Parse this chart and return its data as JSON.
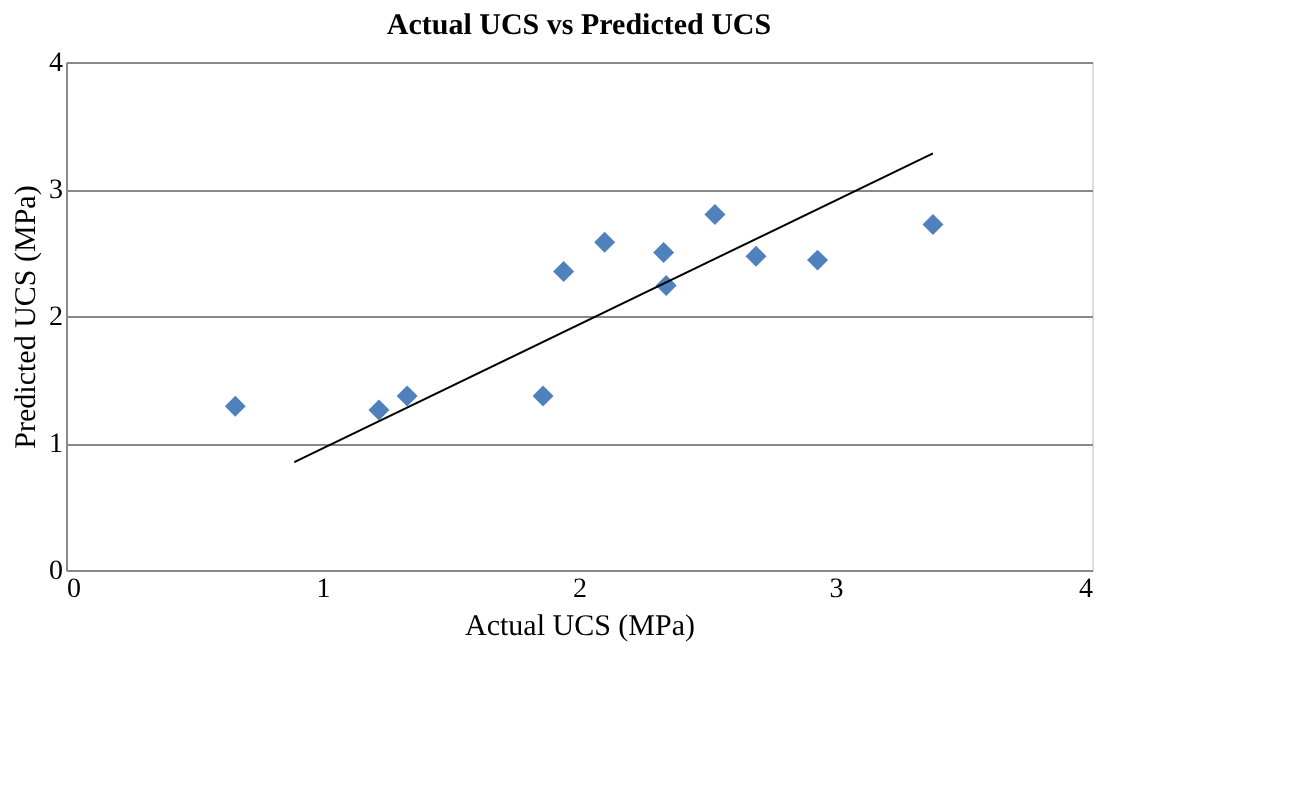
{
  "chart_data": {
    "type": "scatter",
    "title": "Actual UCS vs Predicted UCS",
    "xlabel": "Actual UCS (MPa)",
    "ylabel": "Predicted UCS (MPa)",
    "xlim": [
      0,
      4
    ],
    "xticks": [
      0,
      1,
      2,
      3,
      4
    ],
    "ylim": [
      0,
      4
    ],
    "yticks": [
      0,
      1,
      2,
      3,
      4
    ],
    "grid": "y",
    "marker": "diamond",
    "series": [
      {
        "color": "#4f81bd",
        "x": [
          0.66,
          1.22,
          1.33,
          1.86,
          1.94,
          2.1,
          2.33,
          2.34,
          2.53,
          2.69,
          2.93,
          3.38
        ],
        "values": [
          1.29,
          1.26,
          1.37,
          1.37,
          2.35,
          2.58,
          2.5,
          2.24,
          2.8,
          2.47,
          2.44,
          2.72
        ]
      },
      {
        "type": "line",
        "color": "#000000",
        "marker": "none",
        "x": [
          0.89,
          3.38
        ],
        "values": [
          0.85,
          3.28
        ]
      }
    ]
  }
}
